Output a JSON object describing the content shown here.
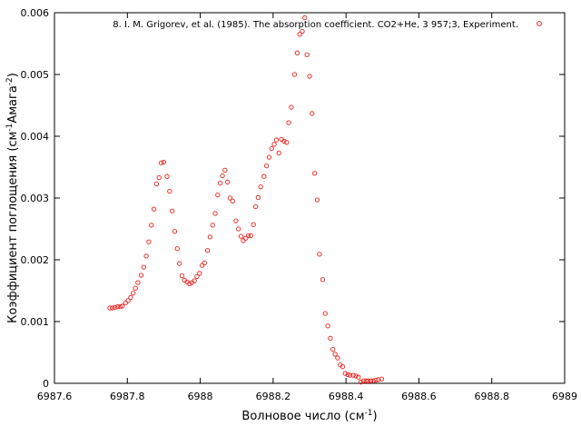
{
  "chart_data": {
    "type": "scatter",
    "xlabel": "Волновое число (см",
    "xlabel_sup": "-1",
    "xlabel_end": ")",
    "ylabel": "Коэффициент поглощения (см",
    "ylabel_sup1": "-1",
    "ylabel_mid": "Амага",
    "ylabel_sup2": "-2",
    "ylabel_end": ")",
    "xlim": [
      6987.6,
      6989.0
    ],
    "ylim": [
      0,
      0.006
    ],
    "x_ticks": [
      "6987.6",
      "6987.8",
      "6988",
      "6988.2",
      "6988.4",
      "6988.6",
      "6988.8",
      "6989"
    ],
    "y_ticks": [
      "0",
      "0.001",
      "0.002",
      "0.003",
      "0.004",
      "0.005",
      "0.006"
    ],
    "legend_position": "top",
    "marker_color": "#e8201c",
    "series": [
      {
        "name": "8. I. M. Grigorev, et al. (1985). The absorption coefficient. CO2+He, 3  957;3, Experiment.",
        "points": [
          [
            6987.752,
            0.00122
          ],
          [
            6987.759,
            0.00122
          ],
          [
            6987.766,
            0.00123
          ],
          [
            6987.773,
            0.00124
          ],
          [
            6987.78,
            0.00124
          ],
          [
            6987.786,
            0.00125
          ],
          [
            6987.795,
            0.0013
          ],
          [
            6987.802,
            0.00134
          ],
          [
            6987.809,
            0.00139
          ],
          [
            6987.816,
            0.00146
          ],
          [
            6987.822,
            0.00154
          ],
          [
            6987.829,
            0.00163
          ],
          [
            6987.838,
            0.00175
          ],
          [
            6987.845,
            0.00188
          ],
          [
            6987.852,
            0.00206
          ],
          [
            6987.859,
            0.00229
          ],
          [
            6987.866,
            0.00256
          ],
          [
            6987.873,
            0.00282
          ],
          [
            6987.88,
            0.00323
          ],
          [
            6987.887,
            0.00333
          ],
          [
            6987.893,
            0.00357
          ],
          [
            6987.9,
            0.00358
          ],
          [
            6987.909,
            0.00335
          ],
          [
            6987.916,
            0.00311
          ],
          [
            6987.923,
            0.00279
          ],
          [
            6987.93,
            0.00246
          ],
          [
            6987.937,
            0.00218
          ],
          [
            6987.943,
            0.00194
          ],
          [
            6987.95,
            0.00174
          ],
          [
            6987.957,
            0.00167
          ],
          [
            6987.964,
            0.00164
          ],
          [
            6987.971,
            0.00161
          ],
          [
            6987.977,
            0.00163
          ],
          [
            6987.984,
            0.00166
          ],
          [
            6987.991,
            0.00173
          ],
          [
            6987.998,
            0.00178
          ],
          [
            6988.005,
            0.00191
          ],
          [
            6988.012,
            0.00195
          ],
          [
            6988.02,
            0.00215
          ],
          [
            6988.027,
            0.00237
          ],
          [
            6988.034,
            0.00256
          ],
          [
            6988.041,
            0.00275
          ],
          [
            6988.048,
            0.00305
          ],
          [
            6988.055,
            0.00324
          ],
          [
            6988.061,
            0.00336
          ],
          [
            6988.068,
            0.00345
          ],
          [
            6988.075,
            0.00326
          ],
          [
            6988.082,
            0.003
          ],
          [
            6988.089,
            0.00295
          ],
          [
            6988.098,
            0.00263
          ],
          [
            6988.105,
            0.0025
          ],
          [
            6988.112,
            0.00238
          ],
          [
            6988.118,
            0.00231
          ],
          [
            6988.125,
            0.00235
          ],
          [
            6988.132,
            0.00239
          ],
          [
            6988.139,
            0.00239
          ],
          [
            6988.146,
            0.00257
          ],
          [
            6988.152,
            0.00286
          ],
          [
            6988.159,
            0.00301
          ],
          [
            6988.166,
            0.00318
          ],
          [
            6988.175,
            0.00335
          ],
          [
            6988.182,
            0.00352
          ],
          [
            6988.189,
            0.00366
          ],
          [
            6988.196,
            0.0038
          ],
          [
            6988.203,
            0.00387
          ],
          [
            6988.209,
            0.00394
          ],
          [
            6988.216,
            0.00373
          ],
          [
            6988.223,
            0.00395
          ],
          [
            6988.23,
            0.00392
          ],
          [
            6988.237,
            0.0039
          ],
          [
            6988.243,
            0.00422
          ],
          [
            6988.25,
            0.00447
          ],
          [
            6988.259,
            0.005
          ],
          [
            6988.266,
            0.00535
          ],
          [
            6988.273,
            0.00565
          ],
          [
            6988.28,
            0.0057
          ],
          [
            6988.287,
            0.00592
          ],
          [
            6988.293,
            0.00532
          ],
          [
            6988.3,
            0.00497
          ],
          [
            6988.307,
            0.00437
          ],
          [
            6988.314,
            0.0034
          ],
          [
            6988.321,
            0.00297
          ],
          [
            6988.327,
            0.00209
          ],
          [
            6988.336,
            0.00168
          ],
          [
            6988.343,
            0.00113
          ],
          [
            6988.35,
            0.00093
          ],
          [
            6988.357,
            0.00073
          ],
          [
            6988.364,
            0.00055
          ],
          [
            6988.37,
            0.00047
          ],
          [
            6988.377,
            0.00041
          ],
          [
            6988.384,
            0.0003
          ],
          [
            6988.391,
            0.00027
          ],
          [
            6988.398,
            0.00016
          ],
          [
            6988.405,
            0.00014
          ],
          [
            6988.411,
            0.00013
          ],
          [
            6988.42,
            0.00013
          ],
          [
            6988.427,
            0.00012
          ],
          [
            6988.434,
            0.0001
          ],
          [
            6988.441,
            2e-05
          ],
          [
            6988.448,
            4e-05
          ],
          [
            6988.455,
            4e-05
          ],
          [
            6988.461,
            4e-05
          ],
          [
            6988.468,
            4e-05
          ],
          [
            6988.475,
            4e-05
          ],
          [
            6988.482,
            5e-05
          ],
          [
            6988.489,
            6e-05
          ],
          [
            6988.498,
            7e-05
          ]
        ]
      }
    ]
  }
}
